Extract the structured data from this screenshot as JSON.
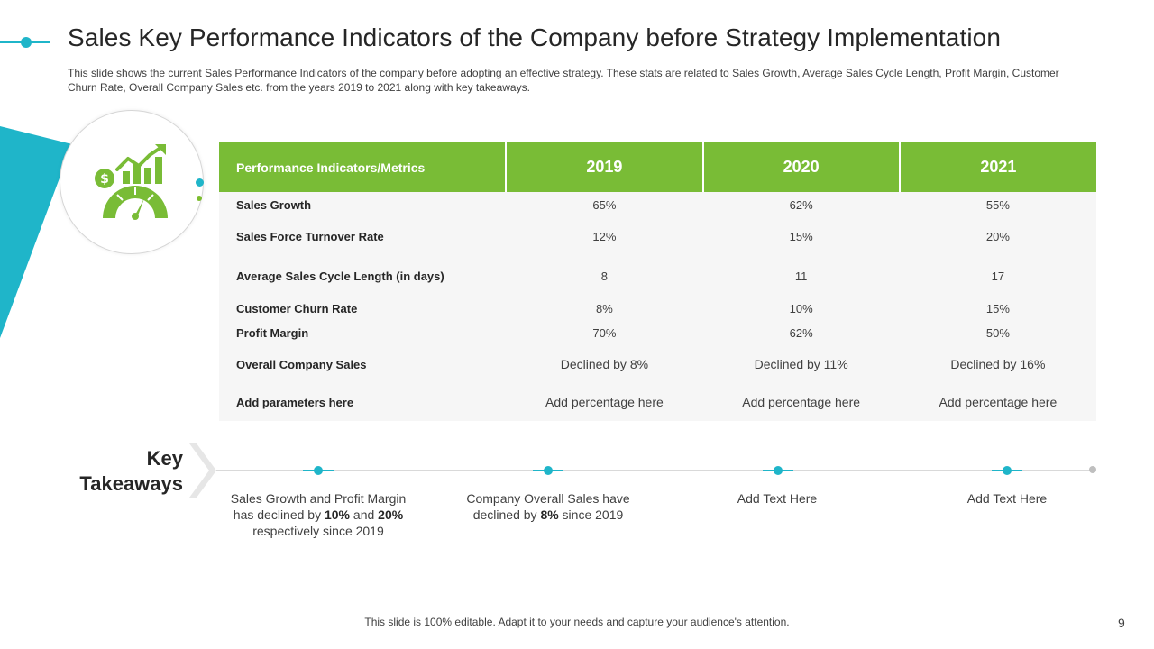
{
  "header": {
    "title": "Sales Key Performance Indicators of the Company before Strategy Implementation",
    "subtitle": "This slide shows the current Sales Performance Indicators of the company before adopting an effective strategy. These stats are related to Sales Growth, Average Sales Cycle Length, Profit Margin, Customer Churn Rate, Overall Company Sales etc. from the years  2019 to 2021 along with key takeaways."
  },
  "icon": {
    "name": "sales-growth-gauge-icon"
  },
  "table": {
    "headers": [
      "Performance Indicators/Metrics",
      "2019",
      "2020",
      "2021"
    ],
    "rows": [
      {
        "label": "Sales Growth",
        "values": [
          "65%",
          "62%",
          "55%"
        ]
      },
      {
        "label": "Sales Force Turnover  Rate",
        "values": [
          "12%",
          "15%",
          "20%"
        ]
      },
      {
        "label": "Average  Sales Cycle Length  (in days)",
        "values": [
          "8",
          "11",
          "17"
        ]
      },
      {
        "label": "Customer Churn  Rate",
        "values": [
          "8%",
          "10%",
          "15%"
        ]
      },
      {
        "label": "Profit Margin",
        "values": [
          "70%",
          "62%",
          "50%"
        ]
      },
      {
        "label": "Overall Company Sales",
        "values": [
          "Declined by 8%",
          "Declined by 11%",
          "Declined by 16%"
        ]
      },
      {
        "label": "Add parameters here",
        "values": [
          "Add percentage here",
          "Add percentage here",
          "Add percentage here"
        ]
      }
    ]
  },
  "takeaways": {
    "title_line1": "Key",
    "title_line2": "Takeaways",
    "item1": {
      "p1": "Sales Growth and Profit Margin has declined by ",
      "b1": "10%",
      "p2": " and ",
      "b2": "20%",
      "p3": " respectively since 2019"
    },
    "item2": {
      "p1": "Company Overall Sales have declined by ",
      "b1": "8%",
      "p2": " since 2019"
    },
    "item3": {
      "text": "Add Text Here"
    },
    "item4": {
      "text": "Add Text Here"
    }
  },
  "footer": {
    "note": "This slide is 100% editable. Adapt it to your needs and capture your audience's attention.",
    "page_number": "9"
  },
  "colors": {
    "teal": "#1fb5c9",
    "green": "#79bc36",
    "row_bg": "#f6f6f6"
  }
}
